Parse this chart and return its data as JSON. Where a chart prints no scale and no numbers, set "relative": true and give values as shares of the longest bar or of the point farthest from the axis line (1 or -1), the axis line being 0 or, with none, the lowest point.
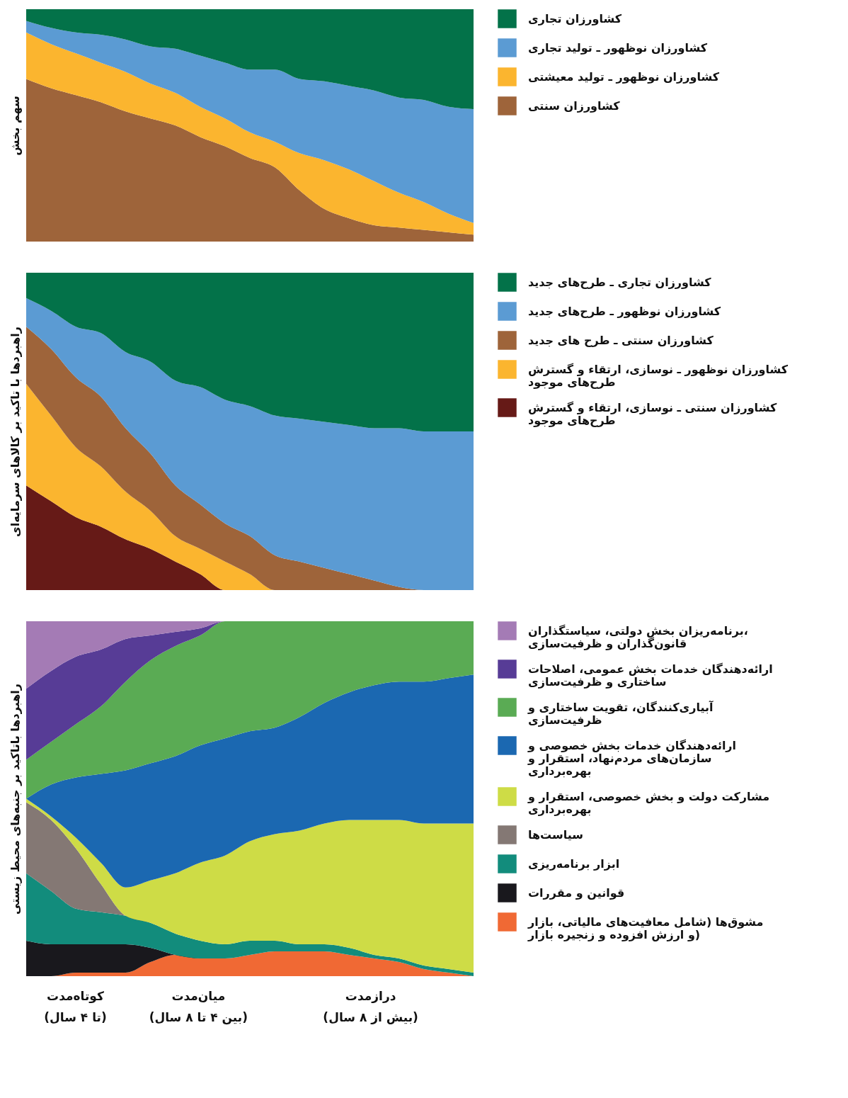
{
  "chart_data": [
    {
      "type": "area",
      "stacked": true,
      "relative": true,
      "ylabel": "سهم بخش",
      "legend": "right",
      "tick_labels": false,
      "categories": [
        null,
        null,
        null,
        null,
        null,
        null,
        null,
        null,
        null,
        null,
        null,
        null,
        null,
        null,
        null,
        null,
        null,
        null,
        null
      ],
      "series": [
        {
          "name": "کشاورزان سنتی",
          "color": "#9e643a",
          "values": [
            0.7,
            0.66,
            0.63,
            0.6,
            0.56,
            0.53,
            0.5,
            0.45,
            0.41,
            0.36,
            0.32,
            0.22,
            0.14,
            0.1,
            0.07,
            0.06,
            0.05,
            0.04,
            0.03
          ]
        },
        {
          "name": "کشاورزان نوظهور ـ تولید معیشتی",
          "color": "#fbb52f",
          "values": [
            0.2,
            0.19,
            0.18,
            0.17,
            0.17,
            0.15,
            0.14,
            0.13,
            0.12,
            0.11,
            0.11,
            0.16,
            0.21,
            0.21,
            0.19,
            0.15,
            0.12,
            0.08,
            0.05
          ]
        },
        {
          "name": "کشاورزان نوظهور ـ تولید تجاری",
          "color": "#5b9bd3",
          "values": [
            0.05,
            0.07,
            0.09,
            0.12,
            0.14,
            0.16,
            0.19,
            0.22,
            0.24,
            0.27,
            0.31,
            0.32,
            0.34,
            0.36,
            0.39,
            0.41,
            0.44,
            0.46,
            0.49
          ]
        },
        {
          "name": "کشاورزان تجاری",
          "color": "#037249",
          "values": [
            0.05,
            0.08,
            0.1,
            0.11,
            0.13,
            0.16,
            0.17,
            0.2,
            0.23,
            0.26,
            0.26,
            0.3,
            0.31,
            0.33,
            0.35,
            0.38,
            0.39,
            0.42,
            0.43
          ]
        }
      ]
    },
    {
      "type": "area",
      "stacked": true,
      "relative": true,
      "ylabel": "راهبردها با تاکید بر کالاهای سرمایه‌ای",
      "legend": "right",
      "tick_labels": false,
      "categories": [
        null,
        null,
        null,
        null,
        null,
        null,
        null,
        null,
        null,
        null,
        null,
        null,
        null,
        null,
        null,
        null,
        null,
        null,
        null
      ],
      "series": [
        {
          "name": "کشاورزان سنتی ـ نوسازی، ارتقاء و گسترش طرح‌های موجود",
          "color": "#661a17",
          "values": [
            0.33,
            0.28,
            0.23,
            0.2,
            0.16,
            0.13,
            0.09,
            0.05,
            0,
            0,
            0,
            0,
            0,
            0,
            0,
            0,
            0,
            0,
            0
          ]
        },
        {
          "name": "کشاورزان نوظهور ـ نوسازی، ارتقاء و گسترش طرح‌های موجود",
          "color": "#fbb52f",
          "values": [
            0.32,
            0.27,
            0.22,
            0.19,
            0.15,
            0.12,
            0.08,
            0.08,
            0.09,
            0.05,
            0,
            0,
            0,
            0,
            0,
            0,
            0,
            0,
            0
          ]
        },
        {
          "name": "کشاورزان سنتی ـ طرح های جدید",
          "color": "#9e643a",
          "values": [
            0.18,
            0.21,
            0.22,
            0.22,
            0.2,
            0.18,
            0.16,
            0.14,
            0.12,
            0.12,
            0.11,
            0.09,
            0.07,
            0.05,
            0.03,
            0.01,
            0,
            0,
            0
          ]
        },
        {
          "name": "کشاورزان نوظهور ـ طرح‌های جدید",
          "color": "#5b9bd3",
          "values": [
            0.09,
            0.12,
            0.16,
            0.2,
            0.24,
            0.29,
            0.33,
            0.37,
            0.39,
            0.41,
            0.44,
            0.45,
            0.46,
            0.47,
            0.48,
            0.5,
            0.5,
            0.5,
            0.5
          ]
        },
        {
          "name": "کشاورزان تجاری ـ طرح‌های جدید",
          "color": "#037249",
          "values": [
            0.08,
            0.12,
            0.17,
            0.19,
            0.25,
            0.28,
            0.34,
            0.36,
            0.4,
            0.42,
            0.45,
            0.46,
            0.47,
            0.48,
            0.49,
            0.49,
            0.5,
            0.5,
            0.5
          ]
        }
      ]
    },
    {
      "type": "area",
      "stacked": true,
      "relative": true,
      "ylabel": "راهبردها باتاکید بر جنبه‌های محیط زیستی",
      "legend": "right",
      "tick_labels": false,
      "annotations": [
        "کوتاه‌مدت (تا ۴ سال)",
        "میان‌مدت (بین ۴ تا ۸ سال)",
        "درازمدت (بیش از ۸ سال)"
      ],
      "categories": [
        null,
        null,
        null,
        null,
        null,
        null,
        null,
        null,
        null,
        null,
        null,
        null,
        null,
        null,
        null,
        null,
        null,
        null,
        null
      ],
      "series": [
        {
          "name": "مشوق‌ها (شامل معافیت‌های مالیاتی، بازار و ارزش افزوده و زنجیره بازار)",
          "color": "#f06934",
          "values": [
            0,
            0,
            0.01,
            0.01,
            0.01,
            0.04,
            0.06,
            0.05,
            0.05,
            0.06,
            0.07,
            0.07,
            0.07,
            0.06,
            0.05,
            0.04,
            0.02,
            0.01,
            0
          ]
        },
        {
          "name": "قوانین و مقررات",
          "color": "#19181d",
          "values": [
            0.1,
            0.09,
            0.08,
            0.08,
            0.08,
            0.04,
            0,
            0,
            0,
            0,
            0,
            0,
            0,
            0,
            0,
            0,
            0,
            0,
            0
          ]
        },
        {
          "name": "ابزار برنامه‌ریزی",
          "color": "#128c7c",
          "values": [
            0.19,
            0.15,
            0.1,
            0.09,
            0.08,
            0.07,
            0.06,
            0.05,
            0.04,
            0.04,
            0.03,
            0.02,
            0.02,
            0.02,
            0.01,
            0.01,
            0.01,
            0.01,
            0.01
          ]
        },
        {
          "name": "سیاست‌ها",
          "color": "#847874",
          "values": [
            0.2,
            0.2,
            0.17,
            0.08,
            0,
            0,
            0,
            0,
            0,
            0,
            0,
            0,
            0,
            0,
            0,
            0,
            0,
            0,
            0
          ]
        },
        {
          "name": "مشارکت دولت و بخش خصوصی، استقرار و بهره‌برداری",
          "color": "#cedc46",
          "values": [
            0.01,
            0.01,
            0.03,
            0.06,
            0.08,
            0.12,
            0.17,
            0.22,
            0.25,
            0.28,
            0.3,
            0.32,
            0.34,
            0.36,
            0.38,
            0.39,
            0.4,
            0.41,
            0.42
          ]
        },
        {
          "name": "ارائه‌دهندگان خدمات بخش خصوصی و سازمان‌های مردم‌نهاد، استقرار و بهره‌برداری",
          "color": "#1b68b1",
          "values": [
            0,
            0.09,
            0.17,
            0.25,
            0.33,
            0.33,
            0.33,
            0.33,
            0.33,
            0.31,
            0.3,
            0.32,
            0.34,
            0.36,
            0.38,
            0.39,
            0.4,
            0.41,
            0.42
          ]
        },
        {
          "name": "آبیاری‌کنندگان، تقویت ساختاری و ظرفیت‌سازی",
          "color": "#5aab54",
          "values": [
            0.11,
            0.12,
            0.15,
            0.19,
            0.25,
            0.29,
            0.31,
            0.31,
            0.33,
            0.31,
            0.3,
            0.27,
            0.23,
            0.2,
            0.18,
            0.17,
            0.17,
            0.16,
            0.15
          ]
        },
        {
          "name": "ارائه‌دهندگان خدمات بخش عمومی، اصلاحات ساختاری و ظرفیت‌سازی",
          "color": "#573c96",
          "values": [
            0.2,
            0.2,
            0.19,
            0.16,
            0.12,
            0.07,
            0.04,
            0.02,
            0,
            0,
            0,
            0,
            0,
            0,
            0,
            0,
            0,
            0,
            0
          ]
        },
        {
          "name": "برنامه‌ریزان بخش دولتی، سیاستگذاران، قانون‌گذاران و ظرفیت‌سازی",
          "color": "#a47bb5",
          "values": [
            0.19,
            0.14,
            0.1,
            0.08,
            0.05,
            0.04,
            0.03,
            0.02,
            0,
            0,
            0,
            0,
            0,
            0,
            0,
            0,
            0,
            0,
            0
          ]
        }
      ]
    }
  ]
}
